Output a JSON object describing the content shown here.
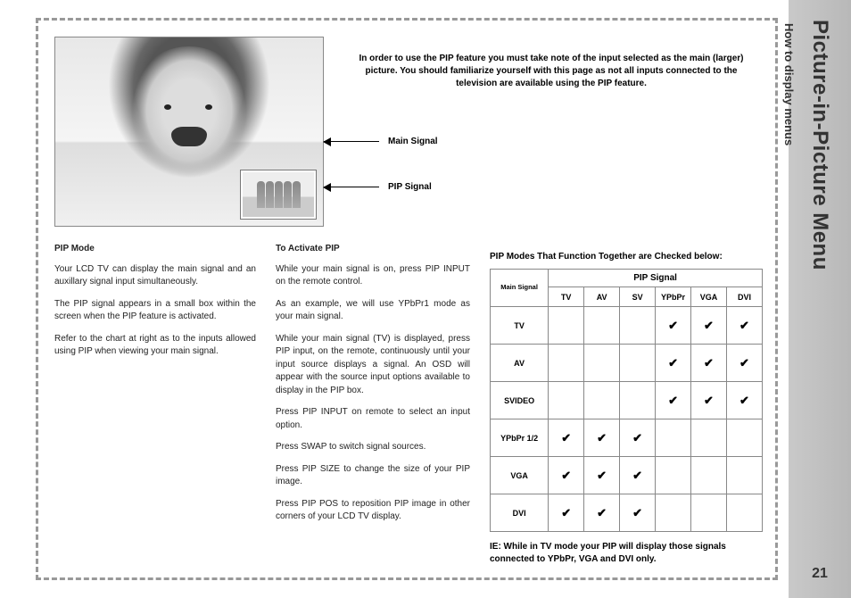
{
  "sidebar": {
    "title": "Picture-in-Picture Menu",
    "subtitle": "How to display menus",
    "page_number": "21"
  },
  "intro": "In order to use the PIP feature you must take note of the input selected as the main (larger) picture. You should familiarize yourself with this page as not all inputs connected to the television are available using the PIP feature.",
  "arrows": {
    "main": "Main Signal",
    "pip": "PIP Signal"
  },
  "col1": {
    "heading": "PIP Mode",
    "p1": "Your LCD TV can display the main signal and an auxillary signal input simultaneously.",
    "p2": "The PIP signal appears in a small box within the screen when the PIP feature is activated.",
    "p3": "Refer to the chart at right as to the inputs allowed using PIP when viewing your main signal."
  },
  "col2": {
    "heading": "To Activate PIP",
    "p1": "While your main signal is on, press PIP INPUT on the remote control.",
    "p2": "As an example, we will use YPbPr1 mode as your main signal.",
    "p3": "While your main signal (TV) is displayed, press PIP input, on the remote, continuously until your input source displays a signal. An OSD will appear with the source input options available to display in the PIP box.",
    "p4": "Press PIP INPUT on remote to select an input option.",
    "p5": "Press SWAP to switch signal sources.",
    "p6": "Press PIP SIZE to change the size of your PIP image.",
    "p7": "Press PIP POS to reposition PIP image in other corners of your LCD TV display."
  },
  "table": {
    "caption": "PIP Modes That Function Together are Checked below:",
    "pip_signal_label": "PIP Signal",
    "main_signal_label": "Main Signal",
    "cols": [
      "TV",
      "AV",
      "SV",
      "YPbPr",
      "VGA",
      "DVI"
    ],
    "rows": [
      {
        "label": "TV",
        "checks": [
          false,
          false,
          false,
          true,
          true,
          true
        ]
      },
      {
        "label": "AV",
        "checks": [
          false,
          false,
          false,
          true,
          true,
          true
        ]
      },
      {
        "label": "SVIDEO",
        "checks": [
          false,
          false,
          false,
          true,
          true,
          true
        ]
      },
      {
        "label": "YPbPr 1/2",
        "checks": [
          true,
          true,
          true,
          false,
          false,
          false
        ]
      },
      {
        "label": "VGA",
        "checks": [
          true,
          true,
          true,
          false,
          false,
          false
        ]
      },
      {
        "label": "DVI",
        "checks": [
          true,
          true,
          true,
          false,
          false,
          false
        ]
      }
    ],
    "note": "IE:  While in TV mode your PIP will display those signals connected to YPbPr, VGA and DVI only."
  },
  "style": {
    "check_glyph": "✔",
    "border_color": "#888",
    "dash_color": "#999"
  }
}
